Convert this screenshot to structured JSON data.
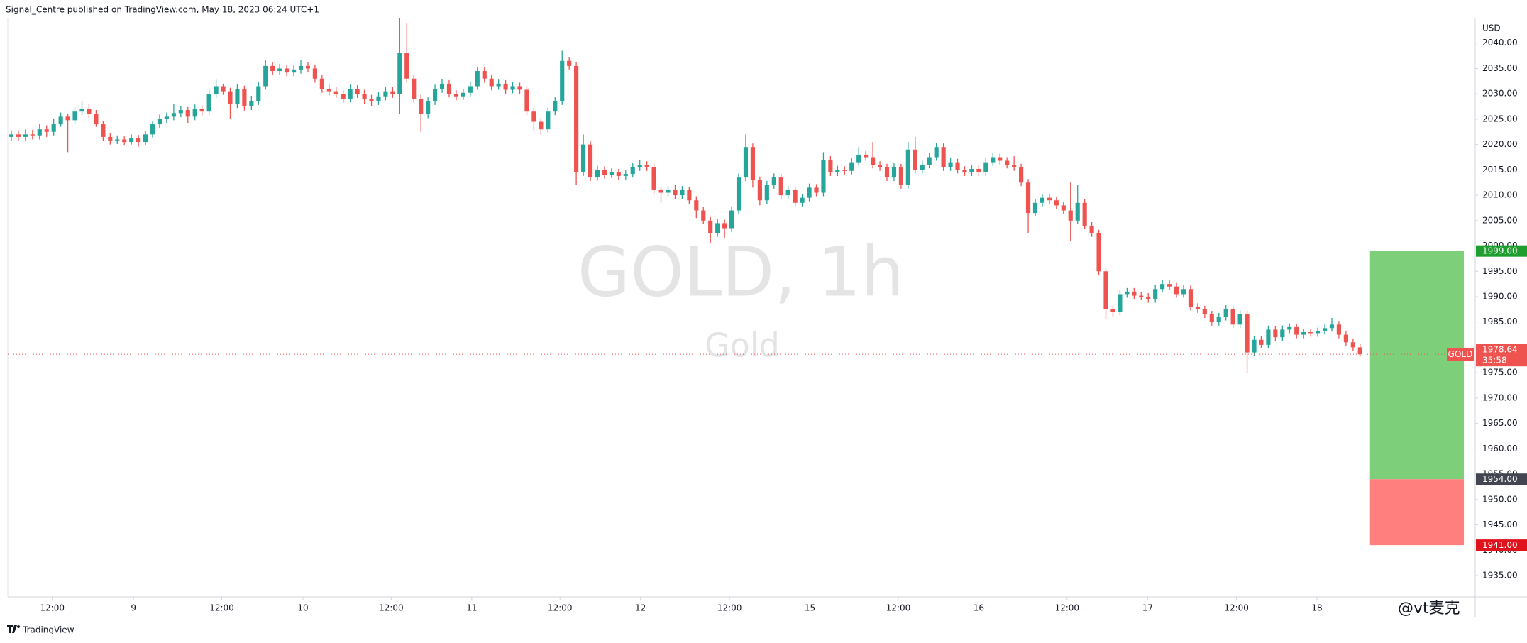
{
  "published": "Signal_Centre published on TradingView.com, May 18, 2023 06:24 UTC+1",
  "brand": "TradingView",
  "credit": "@vt麦克",
  "chart_data": {
    "type": "candlestick",
    "title": "GOLD, 1h",
    "subtitle": "Gold",
    "currency": "USD",
    "up_color": "#26a69a",
    "down_color": "#ef5350",
    "grid": false,
    "xlim": [
      -0.5,
      207.3
    ],
    "ylim": [
      1930.8,
      2045
    ],
    "xticks": [
      {
        "value": 5.8,
        "label": "12:00"
      },
      {
        "value": 17.3,
        "label": "9"
      },
      {
        "value": 29.8,
        "label": "12:00"
      },
      {
        "value": 41.3,
        "label": "10"
      },
      {
        "value": 53.8,
        "label": "12:00"
      },
      {
        "value": 65.2,
        "label": "11"
      },
      {
        "value": 77.7,
        "label": "12:00"
      },
      {
        "value": 89.1,
        "label": "12"
      },
      {
        "value": 101.7,
        "label": "12:00"
      },
      {
        "value": 113.1,
        "label": "15"
      },
      {
        "value": 125.6,
        "label": "12:00"
      },
      {
        "value": 137.0,
        "label": "16"
      },
      {
        "value": 149.5,
        "label": "12:00"
      },
      {
        "value": 160.9,
        "label": "17"
      },
      {
        "value": 173.5,
        "label": "12:00"
      },
      {
        "value": 184.9,
        "label": "18"
      }
    ],
    "yticks": [
      {
        "value": 1935,
        "label": "1935.00"
      },
      {
        "value": 1940,
        "label": "1940.00"
      },
      {
        "value": 1945,
        "label": "1945.00"
      },
      {
        "value": 1950,
        "label": "1950.00"
      },
      {
        "value": 1955,
        "label": "1955.00"
      },
      {
        "value": 1960,
        "label": "1960.00"
      },
      {
        "value": 1965,
        "label": "1965.00"
      },
      {
        "value": 1970,
        "label": "1970.00"
      },
      {
        "value": 1975,
        "label": "1975.00"
      },
      {
        "value": 1980,
        "label": "1980.00"
      },
      {
        "value": 1985,
        "label": "1985.00"
      },
      {
        "value": 1990,
        "label": "1990.00"
      },
      {
        "value": 1995,
        "label": "1995.00"
      },
      {
        "value": 2000,
        "label": "2000.00"
      },
      {
        "value": 2005,
        "label": "2005.00"
      },
      {
        "value": 2010,
        "label": "2010.00"
      },
      {
        "value": 2015,
        "label": "2015.00"
      },
      {
        "value": 2020,
        "label": "2020.00"
      },
      {
        "value": 2025,
        "label": "2025.00"
      },
      {
        "value": 2030,
        "label": "2030.00"
      },
      {
        "value": 2035,
        "label": "2035.00"
      },
      {
        "value": 2040,
        "label": "2040.00"
      }
    ],
    "position": {
      "target": {
        "value": 1999,
        "label": "1999.00",
        "color": "#7dcf79"
      },
      "entry": {
        "value": 1954,
        "label": "1954.00"
      },
      "stop": {
        "value": 1941,
        "label": "1941.00",
        "color": "#ff7f7f"
      }
    },
    "last_price": {
      "symbol": "GOLD",
      "value": 1978.64,
      "countdown": "35:58"
    },
    "candles": [
      [
        2021.5,
        2022.8,
        2020.7,
        2022
      ],
      [
        2022,
        2022.8,
        2020.7,
        2021.5
      ],
      [
        2021.5,
        2023,
        2020.8,
        2022
      ],
      [
        2022,
        2022.9,
        2021,
        2021.8
      ],
      [
        2021.8,
        2024,
        2021,
        2023
      ],
      [
        2023,
        2023.8,
        2021.5,
        2022.5
      ],
      [
        2022.5,
        2025,
        2021.8,
        2024
      ],
      [
        2024,
        2026.3,
        2023.5,
        2025.5
      ],
      [
        2025.5,
        2026,
        2018.5,
        2024.8
      ],
      [
        2024.8,
        2027.3,
        2024,
        2026.5
      ],
      [
        2026.5,
        2028.5,
        2025.8,
        2027
      ],
      [
        2027,
        2028,
        2025.3,
        2026
      ],
      [
        2026,
        2026.8,
        2023.5,
        2024
      ],
      [
        2024,
        2024.6,
        2020.7,
        2021.5
      ],
      [
        2021.5,
        2022.2,
        2020,
        2020.8
      ],
      [
        2020.8,
        2021.8,
        2020.1,
        2021
      ],
      [
        2021,
        2021.6,
        2019.8,
        2020.5
      ],
      [
        2020.5,
        2022,
        2020,
        2021.2
      ],
      [
        2021.2,
        2021.9,
        2019.6,
        2020.5
      ],
      [
        2020.5,
        2022.7,
        2019.9,
        2022
      ],
      [
        2022,
        2024.6,
        2021.4,
        2024
      ],
      [
        2024,
        2025.9,
        2023.3,
        2025
      ],
      [
        2025,
        2026.3,
        2024.2,
        2025.5
      ],
      [
        2025.5,
        2028,
        2024.8,
        2026.2
      ],
      [
        2026.2,
        2027.6,
        2025.4,
        2026.8
      ],
      [
        2026.8,
        2027.4,
        2024.2,
        2025.5
      ],
      [
        2025.5,
        2027.9,
        2024.8,
        2027
      ],
      [
        2027,
        2027.7,
        2025.6,
        2026.5
      ],
      [
        2026.5,
        2030.8,
        2025.8,
        2030
      ],
      [
        2030,
        2032.8,
        2029.2,
        2031.5
      ],
      [
        2031.5,
        2032,
        2029.8,
        2030.5
      ],
      [
        2030.5,
        2031.2,
        2025,
        2028
      ],
      [
        2028,
        2031.9,
        2027.2,
        2031
      ],
      [
        2031,
        2031.6,
        2026.7,
        2027.5
      ],
      [
        2027.5,
        2029.6,
        2026.8,
        2028.5
      ],
      [
        2028.5,
        2032.3,
        2027.8,
        2031.5
      ],
      [
        2031.5,
        2036.6,
        2030.8,
        2035.5
      ],
      [
        2035.5,
        2036.3,
        2033.7,
        2034.5
      ],
      [
        2034.5,
        2035.9,
        2033.8,
        2035
      ],
      [
        2035,
        2035.7,
        2033.5,
        2034.2
      ],
      [
        2034.2,
        2035.6,
        2033.5,
        2034.8
      ],
      [
        2034.8,
        2036.6,
        2034,
        2035.5
      ],
      [
        2035.5,
        2036.2,
        2034.2,
        2035
      ],
      [
        2035,
        2035.8,
        2032.2,
        2033
      ],
      [
        2033,
        2033.8,
        2030.2,
        2031
      ],
      [
        2031,
        2031.9,
        2029.7,
        2030.5
      ],
      [
        2030.5,
        2031.3,
        2029.2,
        2030
      ],
      [
        2030,
        2030.7,
        2028.2,
        2029
      ],
      [
        2029,
        2031.8,
        2028.3,
        2031
      ],
      [
        2031,
        2031.7,
        2029.2,
        2030
      ],
      [
        2030,
        2030.8,
        2028,
        2029
      ],
      [
        2029,
        2029.8,
        2027.6,
        2028.5
      ],
      [
        2028.5,
        2030.3,
        2027.8,
        2029.5
      ],
      [
        2029.5,
        2031.4,
        2028.7,
        2030.5
      ],
      [
        2030.5,
        2031.3,
        2029.2,
        2030
      ],
      [
        2030,
        2045,
        2026,
        2038
      ],
      [
        2038,
        2044,
        2032.2,
        2033
      ],
      [
        2033,
        2033.8,
        2028.3,
        2029
      ],
      [
        2029,
        2029.8,
        2022.5,
        2026
      ],
      [
        2026,
        2029.3,
        2025.2,
        2028.5
      ],
      [
        2028.5,
        2031.8,
        2027.8,
        2031
      ],
      [
        2031,
        2032.9,
        2030.2,
        2032
      ],
      [
        2032,
        2032.7,
        2029.3,
        2030
      ],
      [
        2030,
        2030.7,
        2028.7,
        2029.5
      ],
      [
        2029.5,
        2031,
        2028.8,
        2030.2
      ],
      [
        2030.2,
        2032.3,
        2029.5,
        2031.5
      ],
      [
        2031.5,
        2035.3,
        2030.8,
        2034.5
      ],
      [
        2034.5,
        2035.2,
        2032.2,
        2033
      ],
      [
        2033,
        2033.8,
        2030.7,
        2031.5
      ],
      [
        2031.5,
        2032.8,
        2030.8,
        2032
      ],
      [
        2032,
        2032.7,
        2030,
        2030.8
      ],
      [
        2030.8,
        2032.3,
        2030.1,
        2031.5
      ],
      [
        2031.5,
        2032.2,
        2030,
        2030.8
      ],
      [
        2030.8,
        2031.5,
        2025.8,
        2026.5
      ],
      [
        2026.5,
        2027.2,
        2022.8,
        2024.5
      ],
      [
        2024.5,
        2025.2,
        2022,
        2023
      ],
      [
        2023,
        2027.3,
        2022.3,
        2026.5
      ],
      [
        2026.5,
        2029.3,
        2025.8,
        2028.5
      ],
      [
        2028.5,
        2038.5,
        2027.8,
        2036.5
      ],
      [
        2036.5,
        2037.2,
        2034.8,
        2035.5
      ],
      [
        2035.5,
        2036.2,
        2012,
        2014.5
      ],
      [
        2014.5,
        2022,
        2013.8,
        2020
      ],
      [
        2020,
        2020.8,
        2012.8,
        2013.5
      ],
      [
        2013.5,
        2015.8,
        2012.9,
        2015
      ],
      [
        2015,
        2015.7,
        2013.3,
        2014
      ],
      [
        2014,
        2015.3,
        2013.4,
        2014.5
      ],
      [
        2014.5,
        2015.2,
        2013,
        2013.8
      ],
      [
        2013.8,
        2014.9,
        2013.1,
        2014.2
      ],
      [
        2014.2,
        2016.3,
        2013.5,
        2015.5
      ],
      [
        2015.5,
        2017,
        2014.8,
        2016
      ],
      [
        2016,
        2016.7,
        2014.8,
        2015.5
      ],
      [
        2015.5,
        2016.2,
        2010.3,
        2011
      ],
      [
        2011,
        2011.7,
        2008.5,
        2010.5
      ],
      [
        2010.5,
        2011.8,
        2009.8,
        2011
      ],
      [
        2011,
        2012,
        2009.3,
        2010
      ],
      [
        2010,
        2011.8,
        2009.2,
        2011
      ],
      [
        2011,
        2011.7,
        2008.3,
        2009
      ],
      [
        2009,
        2009.8,
        2005.5,
        2007
      ],
      [
        2007,
        2007.7,
        2004.3,
        2005
      ],
      [
        2005,
        2005.7,
        2000.5,
        2002.5
      ],
      [
        2002.5,
        2005.3,
        2001.8,
        2004.5
      ],
      [
        2004.5,
        2005.2,
        2001.5,
        2003.5
      ],
      [
        2003.5,
        2007.8,
        2002.8,
        2007
      ],
      [
        2007,
        2014.3,
        2006.3,
        2013.5
      ],
      [
        2013.5,
        2022,
        2012.8,
        2019.5
      ],
      [
        2019.5,
        2020.2,
        2011.5,
        2013
      ],
      [
        2013,
        2013.7,
        2008,
        2009
      ],
      [
        2009,
        2012.8,
        2008.3,
        2012
      ],
      [
        2012,
        2014.3,
        2011.3,
        2013.5
      ],
      [
        2013.5,
        2014.2,
        2009.3,
        2010
      ],
      [
        2010,
        2011.8,
        2009.3,
        2011
      ],
      [
        2011,
        2011.7,
        2007.8,
        2008.5
      ],
      [
        2008.5,
        2010.3,
        2007.8,
        2009.5
      ],
      [
        2009.5,
        2012.3,
        2008.8,
        2011.5
      ],
      [
        2011.5,
        2012.2,
        2009.8,
        2010.5
      ],
      [
        2010.5,
        2018.5,
        2009.8,
        2017
      ],
      [
        2017,
        2017.7,
        2013.8,
        2014.5
      ],
      [
        2014.5,
        2015.8,
        2013.8,
        2015
      ],
      [
        2015,
        2015.7,
        2014.1,
        2014.8
      ],
      [
        2014.8,
        2017.3,
        2014.1,
        2016.5
      ],
      [
        2016.5,
        2019.5,
        2015.8,
        2018
      ],
      [
        2018,
        2018.7,
        2016.8,
        2017.5
      ],
      [
        2017.5,
        2020.5,
        2015.3,
        2016
      ],
      [
        2016,
        2016.7,
        2014.8,
        2015.5
      ],
      [
        2015.5,
        2016.2,
        2012.8,
        2013.5
      ],
      [
        2013.5,
        2016.3,
        2012.8,
        2015.5
      ],
      [
        2015.5,
        2016.2,
        2011.3,
        2012
      ],
      [
        2012,
        2020.5,
        2011.3,
        2019
      ],
      [
        2019,
        2021.5,
        2014.3,
        2015
      ],
      [
        2015,
        2016.8,
        2014.3,
        2016
      ],
      [
        2016,
        2018.3,
        2015.3,
        2017.5
      ],
      [
        2017.5,
        2020.3,
        2016.8,
        2019.5
      ],
      [
        2019.5,
        2020.2,
        2014.8,
        2015.5
      ],
      [
        2015.5,
        2017.3,
        2014.8,
        2016.5
      ],
      [
        2016.5,
        2017.2,
        2014.3,
        2015
      ],
      [
        2015,
        2015.7,
        2013.8,
        2014.5
      ],
      [
        2014.5,
        2016,
        2013.8,
        2015.2
      ],
      [
        2015.2,
        2015.9,
        2013.8,
        2014.5
      ],
      [
        2014.5,
        2017.3,
        2013.8,
        2016.5
      ],
      [
        2016.5,
        2018.3,
        2015.8,
        2017.5
      ],
      [
        2017.5,
        2018.2,
        2016.1,
        2016.8
      ],
      [
        2016.8,
        2017.5,
        2015.3,
        2016
      ],
      [
        2016,
        2017.7,
        2014.8,
        2015.5
      ],
      [
        2015.5,
        2016.2,
        2011.8,
        2012.5
      ],
      [
        2012.5,
        2013.2,
        2002.5,
        2006.5
      ],
      [
        2006.5,
        2009.3,
        2005.8,
        2008.5
      ],
      [
        2008.5,
        2010.3,
        2007.8,
        2009.5
      ],
      [
        2009.5,
        2010.2,
        2008.3,
        2009
      ],
      [
        2009,
        2009.7,
        2007.3,
        2008
      ],
      [
        2008,
        2008.7,
        2006.3,
        2007
      ],
      [
        2007,
        2012.5,
        2001,
        2005
      ],
      [
        2005,
        2012,
        2004.3,
        2008.5
      ],
      [
        2008.5,
        2009.2,
        2003.3,
        2004
      ],
      [
        2004,
        2004.7,
        2001.8,
        2002.5
      ],
      [
        2002.5,
        2003.2,
        1994.3,
        1995
      ],
      [
        1995,
        1995.7,
        1985.5,
        1987.5
      ],
      [
        1987.5,
        1988.2,
        1986,
        1987
      ],
      [
        1987,
        1991.3,
        1986.3,
        1990.5
      ],
      [
        1990.5,
        1991.7,
        1989.8,
        1991
      ],
      [
        1991,
        1991.7,
        1989.5,
        1990.2
      ],
      [
        1990.2,
        1990.9,
        1989.3,
        1990
      ],
      [
        1990,
        1990.7,
        1988.8,
        1989.5
      ],
      [
        1989.5,
        1992.3,
        1988.8,
        1991.5
      ],
      [
        1991.5,
        1993.3,
        1990.8,
        1992.5
      ],
      [
        1992.5,
        1993.2,
        1991.3,
        1992
      ],
      [
        1992,
        1992.7,
        1989.8,
        1990.5
      ],
      [
        1990.5,
        1992.3,
        1989.8,
        1991.5
      ],
      [
        1991.5,
        1992.2,
        1987.3,
        1988
      ],
      [
        1988,
        1988.7,
        1986.8,
        1987.5
      ],
      [
        1987.5,
        1988.2,
        1985.8,
        1986.5
      ],
      [
        1986.5,
        1987.2,
        1984.3,
        1985
      ],
      [
        1985,
        1986.8,
        1984.3,
        1986
      ],
      [
        1986,
        1988.3,
        1985.3,
        1987.5
      ],
      [
        1987.5,
        1988.2,
        1983.8,
        1984.5
      ],
      [
        1984.5,
        1987.3,
        1983.8,
        1986.5
      ],
      [
        1986.5,
        1987.2,
        1975,
        1979
      ],
      [
        1979,
        1982.3,
        1978.3,
        1981.5
      ],
      [
        1981.5,
        1982.2,
        1979.8,
        1980.5
      ],
      [
        1980.5,
        1984.3,
        1979.8,
        1983.5
      ],
      [
        1983.5,
        1984.2,
        1981.3,
        1982
      ],
      [
        1982,
        1984.3,
        1981.3,
        1983.5
      ],
      [
        1983.5,
        1984.7,
        1982.8,
        1984
      ],
      [
        1984,
        1984.7,
        1981.8,
        1982.5
      ],
      [
        1982.5,
        1983.7,
        1981.8,
        1983
      ],
      [
        1983,
        1983.7,
        1982.1,
        1982.8
      ],
      [
        1982.8,
        1983.9,
        1982.1,
        1983.2
      ],
      [
        1983.2,
        1984.5,
        1982.5,
        1983.8
      ],
      [
        1983.8,
        1985.8,
        1983.1,
        1984.5
      ],
      [
        1984.5,
        1985.2,
        1981.8,
        1982.5
      ],
      [
        1982.5,
        1983.2,
        1980.3,
        1981
      ],
      [
        1981,
        1981.7,
        1979.3,
        1980
      ],
      [
        1980,
        1980.7,
        1978.2,
        1978.64
      ]
    ]
  }
}
